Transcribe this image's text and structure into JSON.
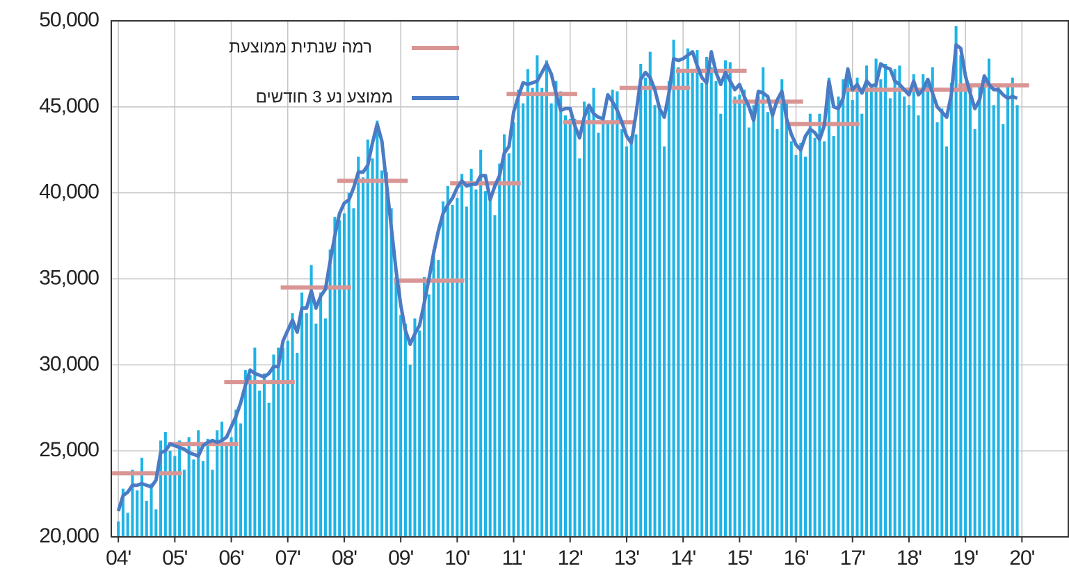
{
  "chart_data": {
    "type": "bar",
    "color": "#1fb3e6",
    "values": [
      20900,
      22800,
      21400,
      23900,
      22700,
      24600,
      22100,
      23100,
      21600,
      25600,
      26100,
      25000,
      24700,
      25600,
      23900,
      25800,
      24500,
      26200,
      24400,
      25700,
      23900,
      26200,
      26700,
      25400,
      25800,
      27400,
      26600,
      29700,
      29400,
      31000,
      28500,
      29500,
      27800,
      30600,
      31000,
      31000,
      31400,
      33000,
      30700,
      34200,
      33000,
      35800,
      32400,
      34200,
      32700,
      36700,
      38600,
      38400,
      38800,
      40000,
      39100,
      42100,
      40900,
      43100,
      42000,
      44200,
      41300,
      41200,
      39100,
      35100,
      32900,
      32400,
      30000,
      32700,
      32000,
      35100,
      34100,
      36700,
      36100,
      39500,
      40400,
      39300,
      39700,
      41100,
      39200,
      41400,
      40200,
      42500,
      40100,
      39800,
      38700,
      41700,
      43400,
      42300,
      44100,
      46000,
      45200,
      47200,
      46100,
      48000,
      46100,
      47700,
      45200,
      46500,
      45900,
      44500,
      44300,
      44300,
      42000,
      45300,
      44800,
      46100,
      43500,
      44500,
      44000,
      46000,
      45900,
      43700,
      42700,
      43300,
      43400,
      47500,
      46700,
      48200,
      45100,
      45100,
      42700,
      46500,
      48900,
      47300,
      47200,
      48400,
      47000,
      48300,
      46400,
      47900,
      47300,
      46500,
      44600,
      47700,
      47600,
      45600,
      45700,
      46000,
      43800,
      45100,
      45600,
      47300,
      44700,
      44700,
      43700,
      46600,
      45400,
      43000,
      42200,
      42900,
      42100,
      44600,
      43200,
      44600,
      43000,
      46700,
      43300,
      45600,
      46600,
      46800,
      45400,
      46700,
      44600,
      47400,
      45900,
      47800,
      46600,
      47500,
      45500,
      47200,
      47400,
      45600,
      45100,
      46900,
      44500,
      46900,
      46300,
      47300,
      44100,
      44900,
      42700,
      46400,
      49700,
      48000,
      46200,
      46200,
      43700,
      46300,
      46500,
      47800,
      45100,
      46200,
      44000,
      46200,
      46700,
      45100
    ],
    "series": [
      {
        "name": "רמה שנתית ממוצעת",
        "color": "#d99594",
        "values": [
          23700,
          25400,
          29000,
          34500,
          40700,
          34900,
          40550,
          45750,
          44100,
          46100,
          47100,
          45300,
          44000,
          46000,
          46000,
          46250
        ]
      },
      {
        "name": "ממוצע נע 3 חודשים",
        "color": "#4a7bc4",
        "values": [
          21500,
          22400,
          22600,
          23000,
          23000,
          23100,
          23000,
          22900,
          23300,
          24900,
          25000,
          25400,
          25300,
          25200,
          25100,
          24900,
          24800,
          24700,
          25300,
          25500,
          25600,
          25500,
          25600,
          25800,
          26400,
          27000,
          27800,
          28800,
          29700,
          29500,
          29400,
          29300,
          29500,
          29900,
          29900,
          31400,
          32000,
          32600,
          31900,
          33300,
          33300,
          34300,
          33300,
          34000,
          34400,
          36000,
          37500,
          38800,
          39400,
          39600,
          40300,
          41200,
          41200,
          41600,
          42900,
          44000,
          43000,
          40500,
          38000,
          35500,
          33500,
          32000,
          31200,
          31800,
          32300,
          33600,
          35000,
          36500,
          37800,
          38800,
          39300,
          39700,
          40300,
          40700,
          40400,
          40500,
          40500,
          41000,
          41000,
          39600,
          40400,
          41000,
          42300,
          42700,
          44700,
          45600,
          46400,
          46300,
          46400,
          46500,
          47000,
          47500,
          46900,
          45800,
          44800,
          44900,
          44900,
          43900,
          43200,
          44400,
          45100,
          44600,
          44400,
          44300,
          45700,
          45300,
          44800,
          44100,
          43300,
          42900,
          44600,
          46600,
          47000,
          46700,
          46000,
          44900,
          44400,
          45800,
          47800,
          47700,
          47800,
          48000,
          48200,
          47400,
          46700,
          46400,
          48200,
          47000,
          46300,
          47000,
          46500,
          46000,
          46300,
          45600,
          45000,
          44200,
          45900,
          45800,
          45600,
          44500,
          45400,
          45900,
          44300,
          43400,
          42800,
          42500,
          43300,
          43700,
          43500,
          43100,
          43900,
          46500,
          45000,
          44900,
          45500,
          47200,
          46000,
          46300,
          45800,
          46500,
          46200,
          46300,
          47500,
          47300,
          47200,
          46500,
          46300,
          46000,
          45700,
          46500,
          45700,
          46000,
          46600,
          45800,
          45000,
          44700,
          44400,
          45700,
          48600,
          48400,
          46800,
          45800,
          44900,
          45400,
          46800,
          46300,
          46000,
          46000,
          45700,
          45500,
          45600,
          45500
        ]
      }
    ],
    "xlim": [
      -1.5,
      202
    ],
    "xticks": [
      {
        "value": 0,
        "label": "04'"
      },
      {
        "value": 12,
        "label": "05'"
      },
      {
        "value": 24,
        "label": "06'"
      },
      {
        "value": 36,
        "label": "07'"
      },
      {
        "value": 48,
        "label": "08'"
      },
      {
        "value": 60,
        "label": "09'"
      },
      {
        "value": 72,
        "label": "10'"
      },
      {
        "value": 84,
        "label": "11'"
      },
      {
        "value": 96,
        "label": "12'"
      },
      {
        "value": 108,
        "label": "13'"
      },
      {
        "value": 120,
        "label": "14'"
      },
      {
        "value": 132,
        "label": "15'"
      },
      {
        "value": 144,
        "label": "16'"
      },
      {
        "value": 156,
        "label": "17'"
      },
      {
        "value": 168,
        "label": "18'"
      },
      {
        "value": 180,
        "label": "19'"
      },
      {
        "value": 192,
        "label": "20'"
      }
    ],
    "ylim": [
      20000,
      50000
    ],
    "yticks": [
      {
        "value": 20000,
        "label": "20,000"
      },
      {
        "value": 25000,
        "label": "25,000"
      },
      {
        "value": 30000,
        "label": "30,000"
      },
      {
        "value": 35000,
        "label": "35,000"
      },
      {
        "value": 40000,
        "label": "40,000"
      },
      {
        "value": 45000,
        "label": "45,000"
      },
      {
        "value": 50000,
        "label": "50,000"
      }
    ],
    "grid": true
  }
}
